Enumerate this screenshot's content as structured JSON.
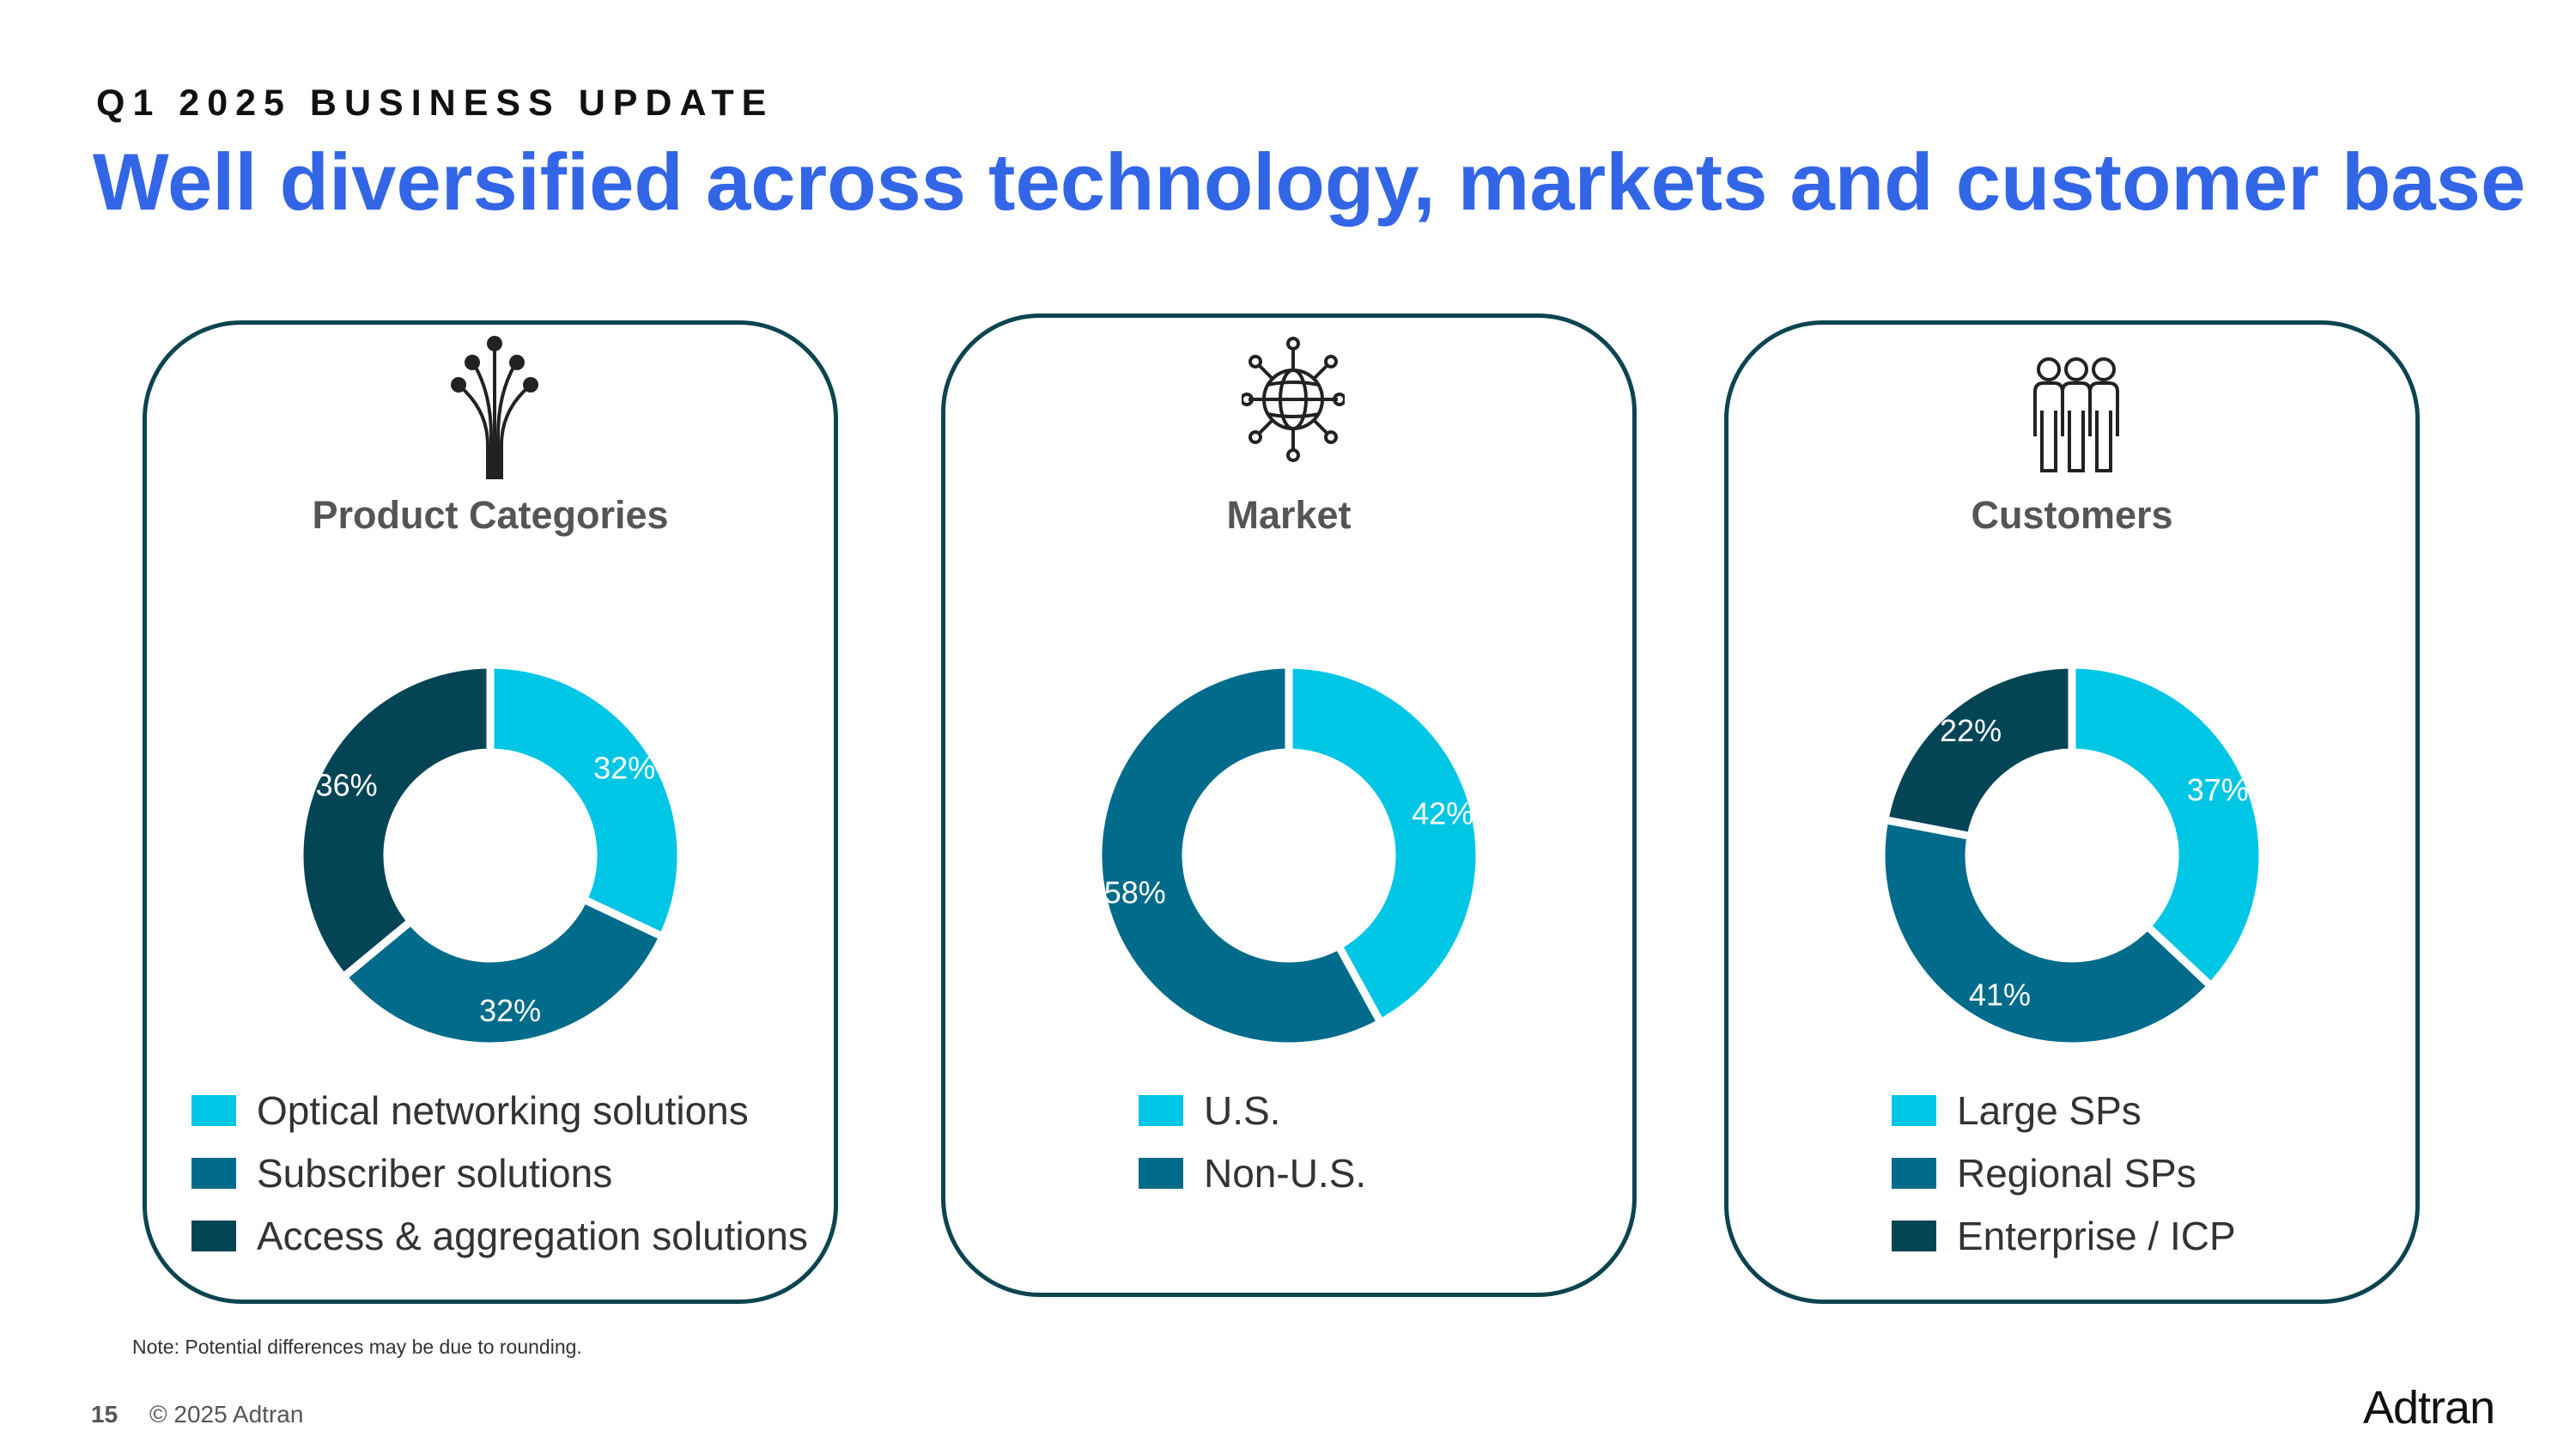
{
  "header": {
    "eyebrow": "Q1 2025 BUSINESS UPDATE",
    "title": "Well diversified across technology, markets and customer base"
  },
  "colors": {
    "title_blue": "#3366e6",
    "panel_border": "#0c4550",
    "cyan": "#00c6e6",
    "teal": "#006b8a",
    "dark_teal": "#044555"
  },
  "chart_data": [
    {
      "type": "pie",
      "title": "Product Categories",
      "icon": "fiber-optic-icon",
      "categories": [
        "Optical networking solutions",
        "Subscriber solutions",
        "Access & aggregation solutions"
      ],
      "values": [
        32,
        32,
        36
      ],
      "labels": [
        "32%",
        "32%",
        "36%"
      ],
      "colors": [
        "#00c6e6",
        "#006b8a",
        "#044555"
      ]
    },
    {
      "type": "pie",
      "title": "Market",
      "icon": "globe-network-icon",
      "categories": [
        "U.S.",
        "Non-U.S."
      ],
      "values": [
        42,
        58
      ],
      "labels": [
        "42%",
        "58%"
      ],
      "colors": [
        "#00c6e6",
        "#006b8a"
      ]
    },
    {
      "type": "pie",
      "title": "Customers",
      "icon": "people-group-icon",
      "categories": [
        "Large SPs",
        "Regional SPs",
        "Enterprise / ICP"
      ],
      "values": [
        37,
        41,
        22
      ],
      "labels": [
        "37%",
        "41%",
        "22%"
      ],
      "colors": [
        "#00c6e6",
        "#006b8a",
        "#044555"
      ]
    }
  ],
  "footer": {
    "note": "Note: Potential differences may be due to rounding.",
    "page": "15",
    "copyright": "© 2025 Adtran",
    "logo": "Adtran"
  }
}
